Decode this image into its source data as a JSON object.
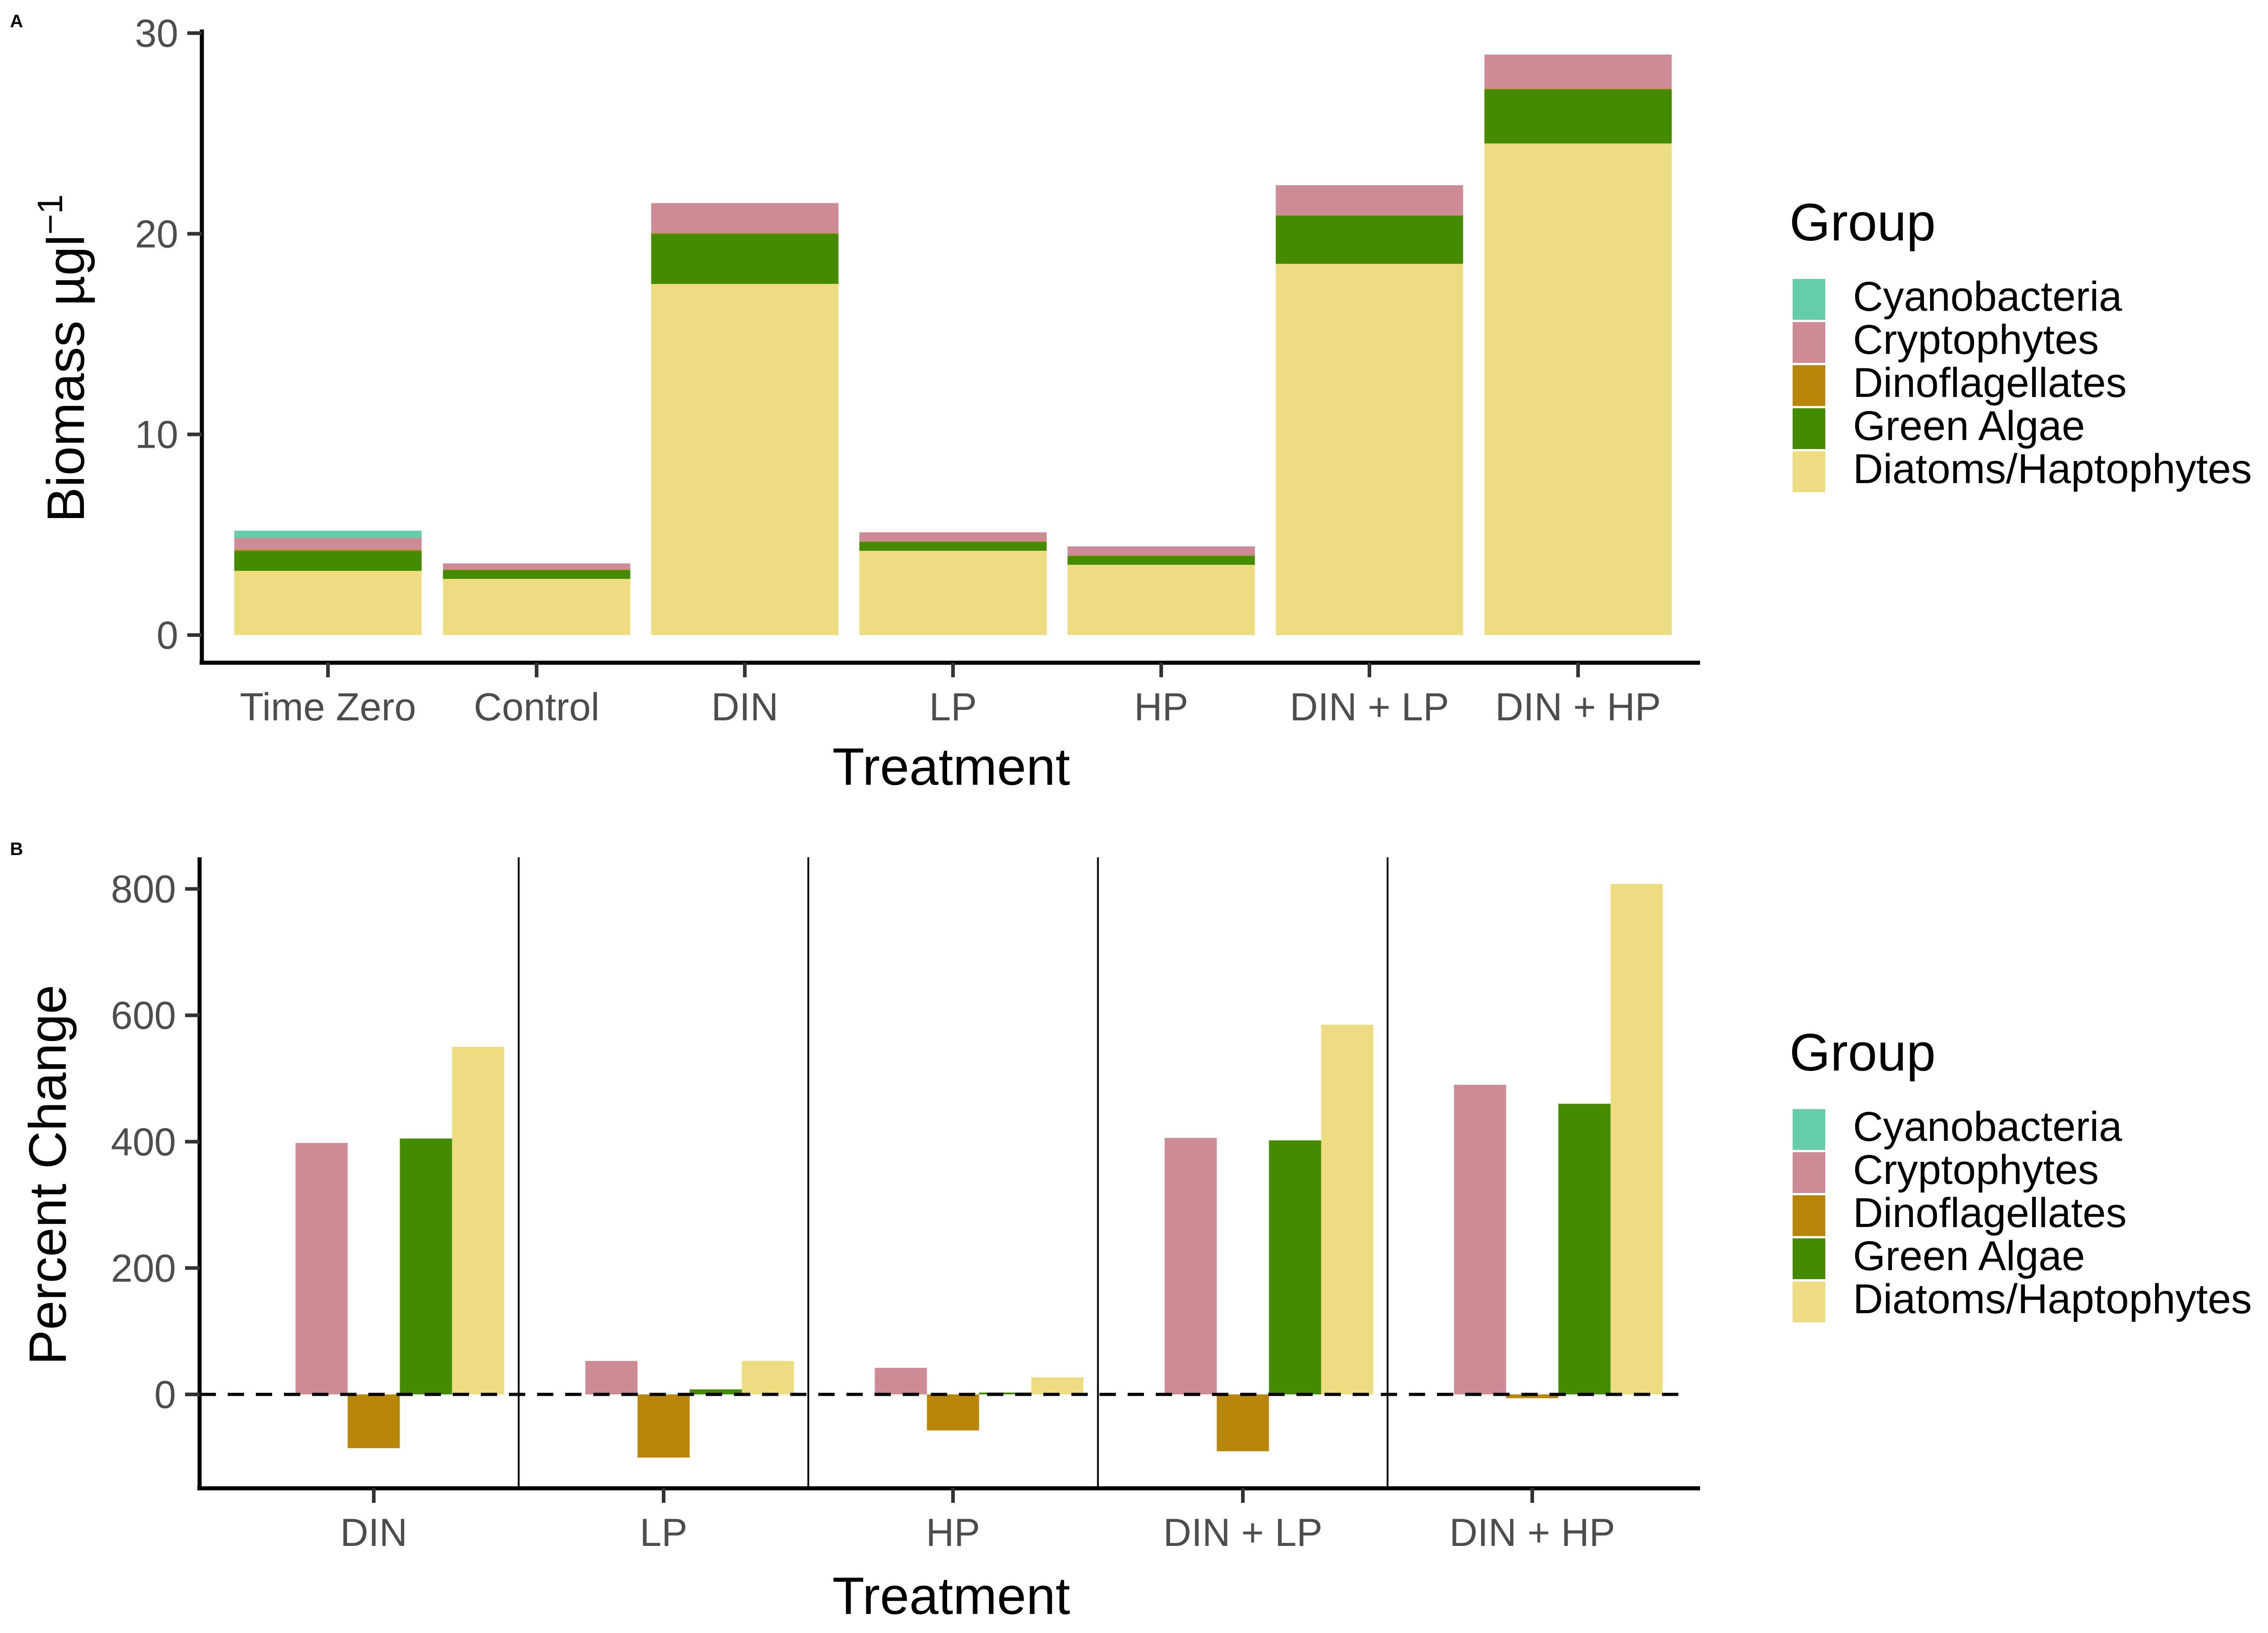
{
  "colors": {
    "Cyanobacteria": "#66CDAA",
    "Cryptophytes": "#CD8C95",
    "Dinoflagellates": "#B8860B",
    "Green Algae": "#458B00",
    "Diatoms/Haptophytes": "#EEDC82"
  },
  "chart_data": [
    {
      "panel_label": "A",
      "type": "bar",
      "stacked": true,
      "xlabel": "Treatment",
      "ylabel_main": "Biomass µgl",
      "ylabel_sup": "−1",
      "ylim": [
        0,
        30
      ],
      "yticks": [
        0,
        10,
        20,
        30
      ],
      "categories": [
        "Time Zero",
        "Control",
        "DIN",
        "LP",
        "HP",
        "DIN + LP",
        "DIN + HP"
      ],
      "series": [
        {
          "name": "Diatoms/Haptophytes",
          "values": [
            3.2,
            2.8,
            17.5,
            4.2,
            3.5,
            18.5,
            24.5
          ]
        },
        {
          "name": "Green Algae",
          "values": [
            1.0,
            0.45,
            2.5,
            0.45,
            0.45,
            2.4,
            2.7
          ]
        },
        {
          "name": "Dinoflagellates",
          "values": [
            0.05,
            0.02,
            0.03,
            0.02,
            0.02,
            0.02,
            0.03
          ]
        },
        {
          "name": "Cryptophytes",
          "values": [
            0.6,
            0.3,
            1.5,
            0.45,
            0.45,
            1.5,
            1.7
          ]
        },
        {
          "name": "Cyanobacteria",
          "values": [
            0.35,
            0.0,
            0.0,
            0.0,
            0.0,
            0.0,
            0.0
          ]
        }
      ],
      "legend": {
        "title": "Group",
        "position": "right",
        "items": [
          "Cyanobacteria",
          "Cryptophytes",
          "Dinoflagellates",
          "Green Algae",
          "Diatoms/Haptophytes"
        ]
      }
    },
    {
      "panel_label": "B",
      "type": "bar",
      "grouped": true,
      "xlabel": "Treatment",
      "ylabel": "Percent Change",
      "ylim": [
        -145,
        850
      ],
      "yticks": [
        0,
        200,
        400,
        600,
        800
      ],
      "reference_line": 0,
      "categories": [
        "DIN",
        "LP",
        "HP",
        "DIN + LP",
        "DIN + HP"
      ],
      "series": [
        {
          "name": "Cyanobacteria",
          "values": [
            0,
            0,
            0,
            0,
            0
          ]
        },
        {
          "name": "Cryptophytes",
          "values": [
            398,
            53,
            42,
            406,
            490
          ]
        },
        {
          "name": "Dinoflagellates",
          "values": [
            -85,
            -100,
            -57,
            -90,
            -6
          ]
        },
        {
          "name": "Green Algae",
          "values": [
            405,
            8,
            3,
            402,
            460
          ]
        },
        {
          "name": "Diatoms/Haptophytes",
          "values": [
            550,
            53,
            27,
            585,
            808
          ]
        }
      ],
      "legend": {
        "title": "Group",
        "position": "right",
        "items": [
          "Cyanobacteria",
          "Cryptophytes",
          "Dinoflagellates",
          "Green Algae",
          "Diatoms/Haptophytes"
        ]
      }
    }
  ]
}
